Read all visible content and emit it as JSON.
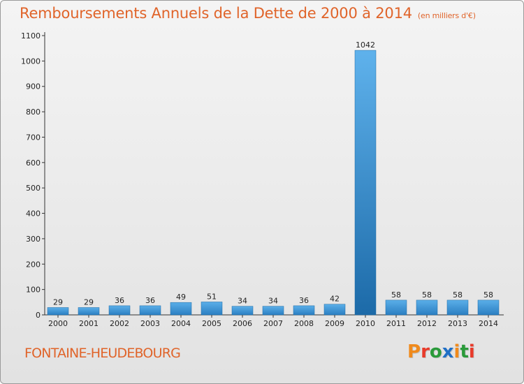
{
  "header": {
    "title": "Remboursements Annuels de la Dette de 2000 à 2014",
    "unit": "(en milliers d'€)"
  },
  "footer": {
    "town": "FONTAINE-HEUDEBOURG",
    "logo": "Proxiti",
    "logo_colors": [
      "#f08a1c",
      "#e83a2a",
      "#2a9a3a",
      "#1f6fc6",
      "#f08a1c",
      "#2a9a3a",
      "#e83a2a"
    ]
  },
  "colors": {
    "title": "#e0642a",
    "bar_light": "#5aaee8",
    "bar_dark": "#1f73b5",
    "axis": "#333333"
  },
  "chart_data": {
    "type": "bar",
    "title": "Remboursements Annuels de la Dette de 2000 à 2014",
    "xlabel": "",
    "ylabel": "",
    "categories": [
      "2000",
      "2001",
      "2002",
      "2003",
      "2004",
      "2005",
      "2006",
      "2007",
      "2008",
      "2009",
      "2010",
      "2011",
      "2012",
      "2013",
      "2014"
    ],
    "values": [
      29,
      29,
      36,
      36,
      49,
      51,
      34,
      34,
      36,
      42,
      1042,
      58,
      58,
      58,
      58
    ],
    "highlight_index": 10,
    "ylim": [
      0,
      1100
    ],
    "yticks": [
      0,
      100,
      200,
      300,
      400,
      500,
      600,
      700,
      800,
      900,
      1000,
      1100
    ],
    "grid": false,
    "data_labels": true
  }
}
